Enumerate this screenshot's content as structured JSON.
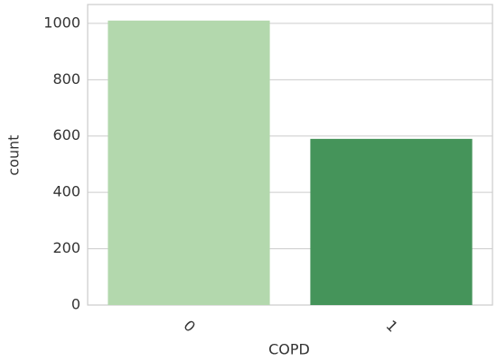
{
  "chart_data": {
    "type": "bar",
    "categories": [
      "0",
      "1"
    ],
    "values": [
      1010,
      590
    ],
    "colors": [
      "#b3d8ad",
      "#45945a"
    ],
    "xlabel": "COPD",
    "ylabel": "count",
    "ylim": [
      0,
      1067
    ],
    "yticks": [
      0,
      200,
      400,
      600,
      800,
      1000
    ],
    "grid": true
  }
}
